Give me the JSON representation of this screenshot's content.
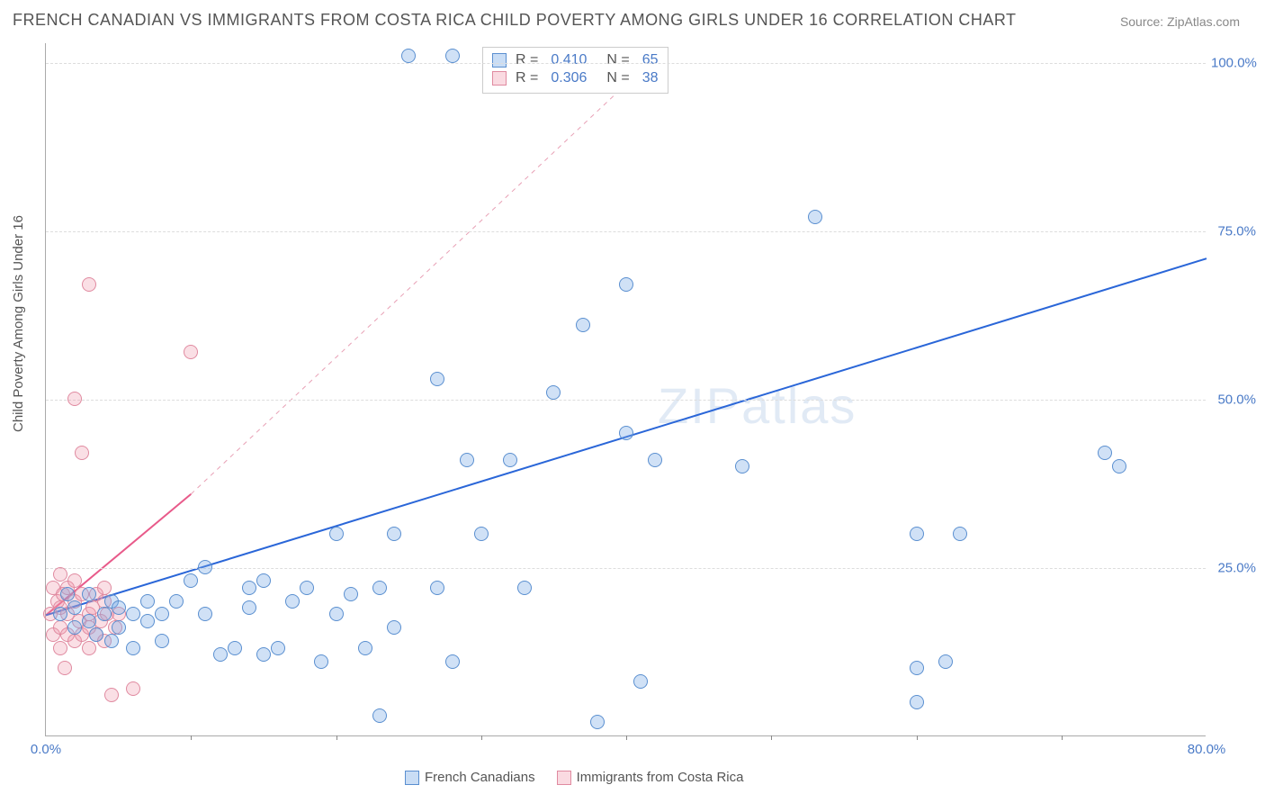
{
  "title": "FRENCH CANADIAN VS IMMIGRANTS FROM COSTA RICA CHILD POVERTY AMONG GIRLS UNDER 16 CORRELATION CHART",
  "source": "Source: ZipAtlas.com",
  "ylabel": "Child Poverty Among Girls Under 16",
  "watermark": "ZIPatlas",
  "chart": {
    "type": "scatter",
    "xlim": [
      0,
      80
    ],
    "ylim": [
      0,
      103
    ],
    "xticks": [
      {
        "v": 0,
        "label": "0.0%"
      },
      {
        "v": 80,
        "label": "80.0%"
      }
    ],
    "xtick_marks": [
      10,
      20,
      30,
      40,
      50,
      60,
      70
    ],
    "yticks": [
      {
        "v": 25,
        "label": "25.0%"
      },
      {
        "v": 50,
        "label": "50.0%"
      },
      {
        "v": 75,
        "label": "75.0%"
      },
      {
        "v": 100,
        "label": "100.0%"
      }
    ],
    "grid_color": "#dddddd",
    "background_color": "#ffffff",
    "series": [
      {
        "name": "French Canadians",
        "color_fill": "rgba(120,170,230,0.35)",
        "color_stroke": "#5a8fd0",
        "trend_color": "#2a66d8",
        "marker_radius": 8,
        "R": "0.410",
        "N": "65",
        "trend": {
          "x0": 0,
          "y0": 18,
          "x1": 80,
          "y1": 71
        },
        "points": [
          [
            1,
            18
          ],
          [
            1.5,
            21
          ],
          [
            2,
            16
          ],
          [
            2,
            19
          ],
          [
            3,
            17
          ],
          [
            3,
            21
          ],
          [
            3.5,
            15
          ],
          [
            4,
            18
          ],
          [
            4.5,
            20
          ],
          [
            4.5,
            14
          ],
          [
            5,
            19
          ],
          [
            5,
            16
          ],
          [
            6,
            18
          ],
          [
            6,
            13
          ],
          [
            7,
            17
          ],
          [
            7,
            20
          ],
          [
            8,
            18
          ],
          [
            8,
            14
          ],
          [
            9,
            20
          ],
          [
            10,
            23
          ],
          [
            11,
            18
          ],
          [
            11,
            25
          ],
          [
            12,
            12
          ],
          [
            13,
            13
          ],
          [
            14,
            22
          ],
          [
            14,
            19
          ],
          [
            15,
            12
          ],
          [
            15,
            23
          ],
          [
            16,
            13
          ],
          [
            17,
            20
          ],
          [
            18,
            22
          ],
          [
            19,
            11
          ],
          [
            20,
            18
          ],
          [
            20,
            30
          ],
          [
            21,
            21
          ],
          [
            22,
            13
          ],
          [
            23,
            22
          ],
          [
            24,
            30
          ],
          [
            24,
            16
          ],
          [
            25,
            101
          ],
          [
            27,
            22
          ],
          [
            27,
            53
          ],
          [
            28,
            101
          ],
          [
            28,
            11
          ],
          [
            29,
            41
          ],
          [
            30,
            30
          ],
          [
            32,
            41
          ],
          [
            33,
            22
          ],
          [
            35,
            51
          ],
          [
            37,
            61
          ],
          [
            38,
            2
          ],
          [
            40,
            67
          ],
          [
            40,
            45
          ],
          [
            41,
            8
          ],
          [
            42,
            41
          ],
          [
            48,
            40
          ],
          [
            53,
            77
          ],
          [
            60,
            10
          ],
          [
            60,
            30
          ],
          [
            62,
            11
          ],
          [
            63,
            30
          ],
          [
            73,
            42
          ],
          [
            74,
            40
          ],
          [
            60,
            5
          ],
          [
            23,
            3
          ]
        ]
      },
      {
        "name": "Immigrants from Costa Rica",
        "color_fill": "rgba(240,150,170,0.30)",
        "color_stroke": "#e08aa0",
        "trend_color": "#e85a8a",
        "marker_radius": 8,
        "R": "0.306",
        "N": "38",
        "trend_solid": {
          "x0": 0,
          "y0": 18,
          "x1": 10,
          "y1": 36
        },
        "trend_dash": {
          "x0": 10,
          "y0": 36,
          "x1": 42,
          "y1": 101
        },
        "points": [
          [
            0.3,
            18
          ],
          [
            0.5,
            15
          ],
          [
            0.5,
            22
          ],
          [
            0.8,
            20
          ],
          [
            1,
            16
          ],
          [
            1,
            19
          ],
          [
            1,
            24
          ],
          [
            1,
            13
          ],
          [
            1.2,
            21
          ],
          [
            1.3,
            10
          ],
          [
            1.5,
            18
          ],
          [
            1.5,
            22
          ],
          [
            1.5,
            15
          ],
          [
            2,
            20
          ],
          [
            2,
            14
          ],
          [
            2,
            23
          ],
          [
            2,
            50
          ],
          [
            2.3,
            17
          ],
          [
            2.5,
            21
          ],
          [
            2.5,
            15
          ],
          [
            2.5,
            42
          ],
          [
            3,
            18
          ],
          [
            3,
            13
          ],
          [
            3,
            16
          ],
          [
            3,
            67
          ],
          [
            3.2,
            19
          ],
          [
            3.5,
            21
          ],
          [
            3.5,
            15
          ],
          [
            3.8,
            17
          ],
          [
            4,
            20
          ],
          [
            4,
            14
          ],
          [
            4,
            22
          ],
          [
            4.2,
            18
          ],
          [
            4.5,
            6
          ],
          [
            4.8,
            16
          ],
          [
            5,
            18
          ],
          [
            6,
            7
          ],
          [
            10,
            57
          ]
        ]
      }
    ]
  },
  "bottom_legend": {
    "items": [
      "French Canadians",
      "Immigrants from Costa Rica"
    ]
  }
}
